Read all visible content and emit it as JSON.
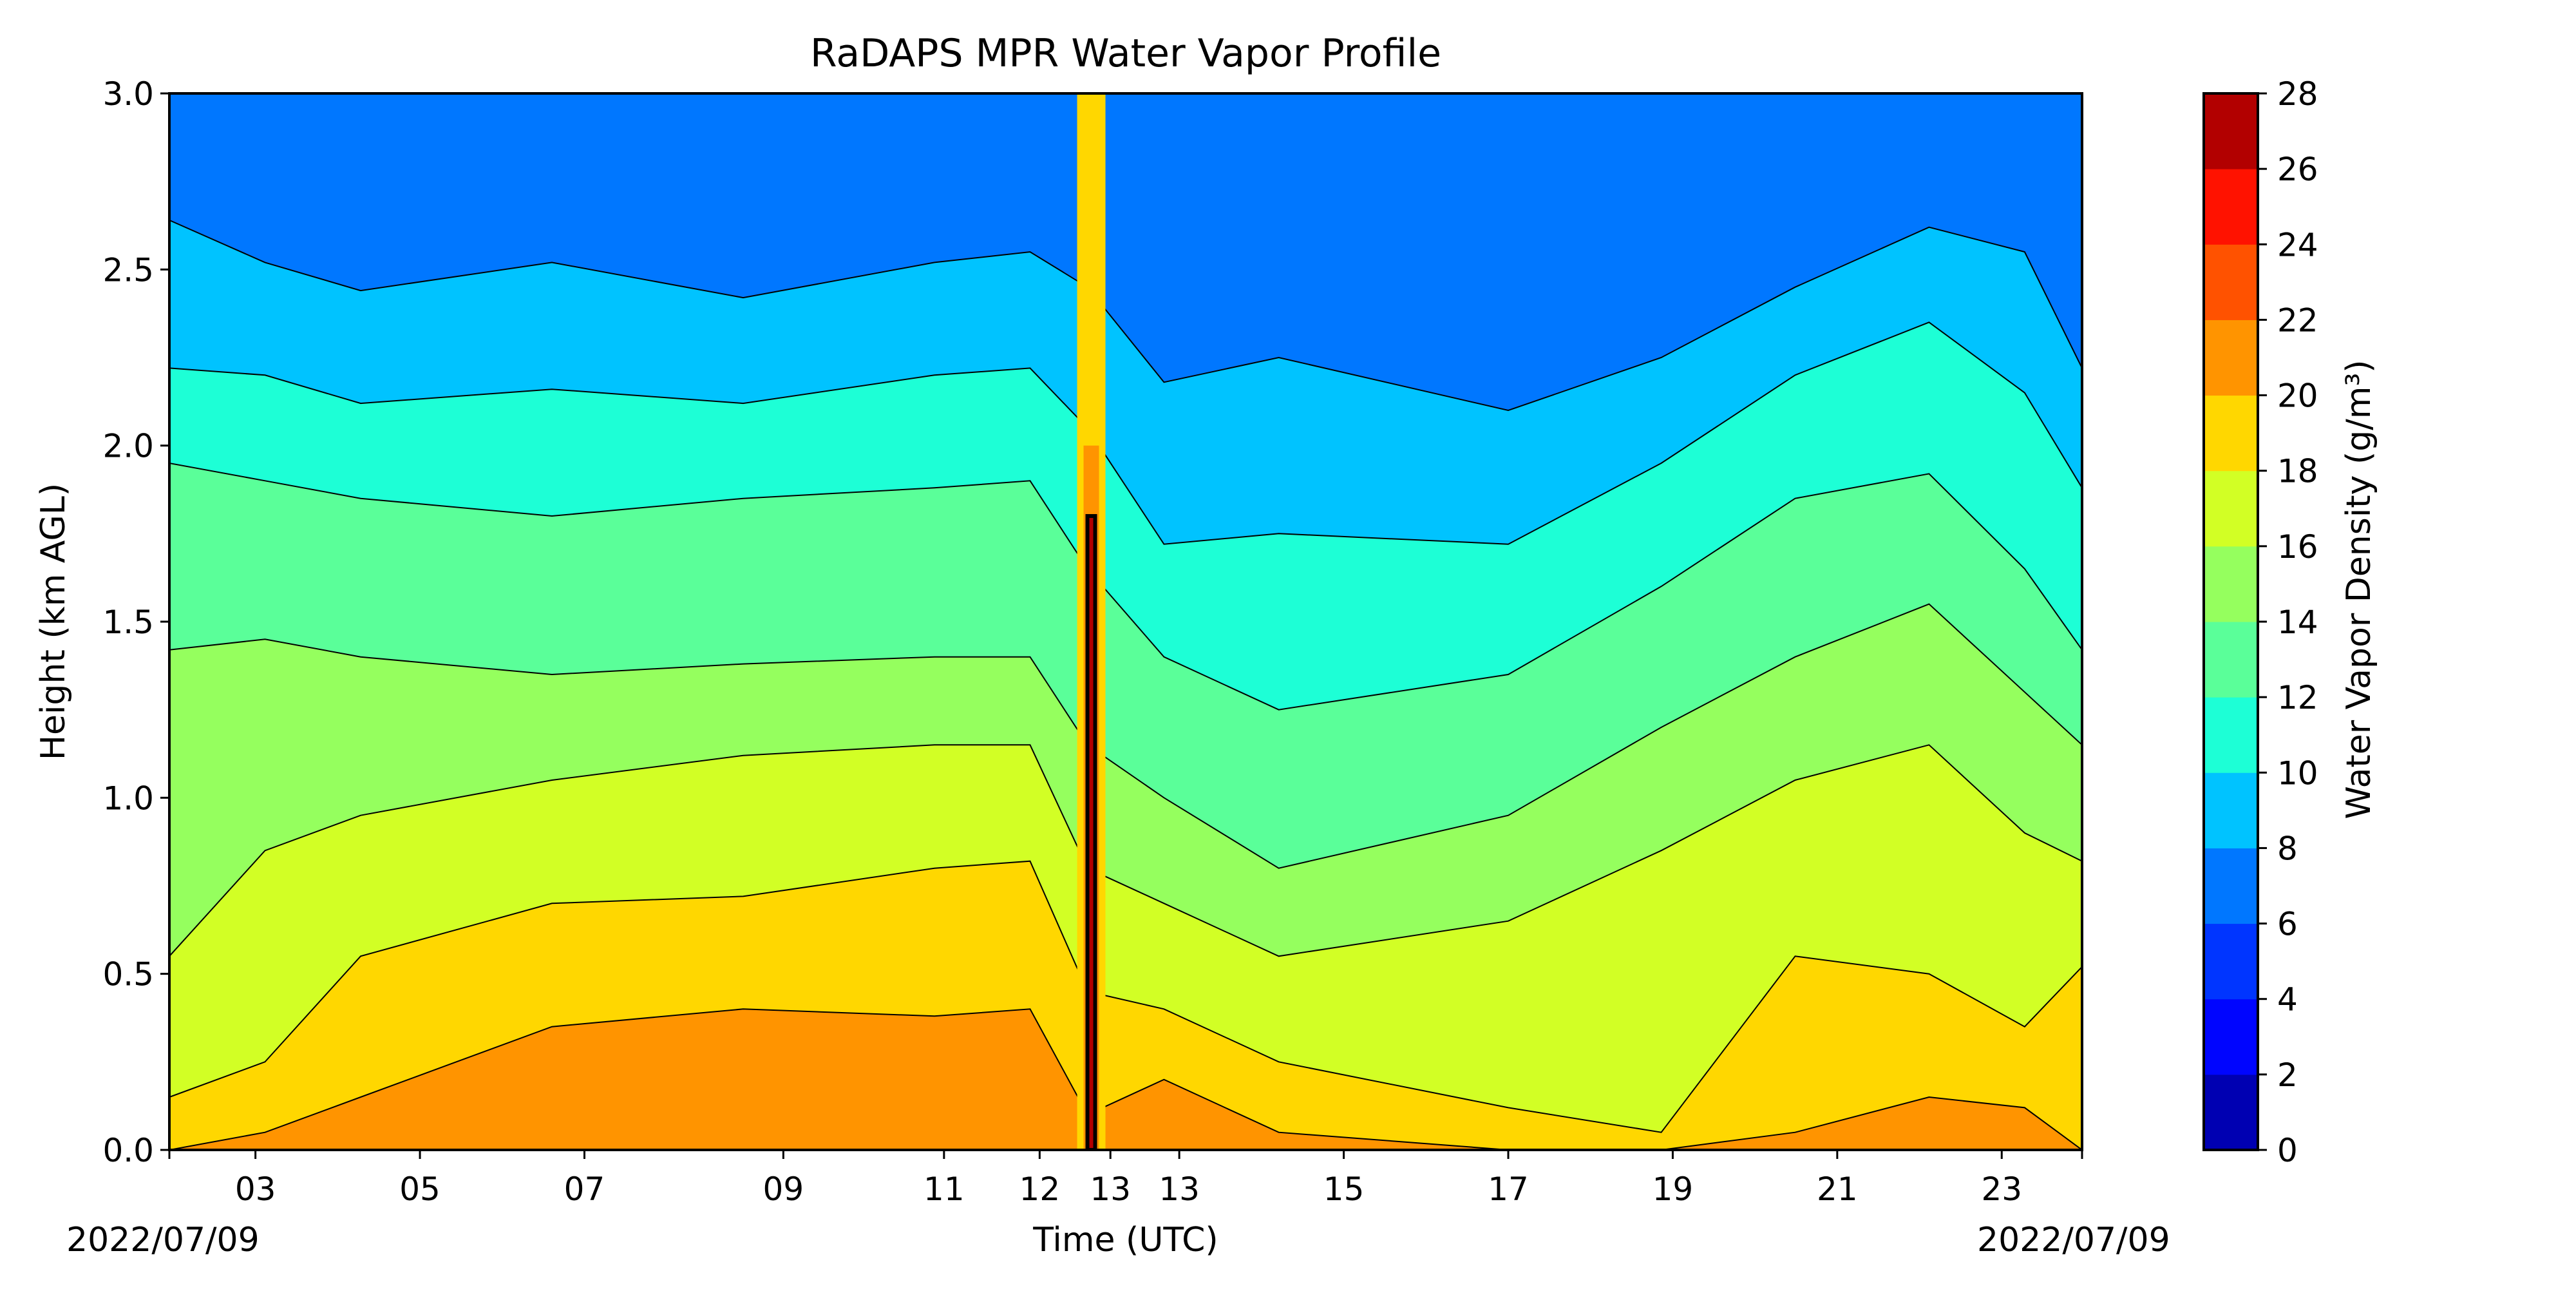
{
  "chart_data": {
    "type": "heatmap",
    "subtype": "filled-contour",
    "title": "RaDAPS MPR Water Vapor Profile",
    "xlabel": "Time (UTC)",
    "ylabel": "Height (km AGL)",
    "start_date_label": "2022/07/09",
    "end_date_label": "2022/07/09",
    "x_tick_labels": [
      "03",
      "05",
      "07",
      "09",
      "11",
      "12",
      "13",
      "13",
      "15",
      "17",
      "19",
      "21",
      "23"
    ],
    "y_ticks": [
      0.0,
      0.5,
      1.0,
      1.5,
      2.0,
      2.5,
      3.0
    ],
    "y_tick_labels": [
      "0.0",
      "0.5",
      "1.0",
      "1.5",
      "2.0",
      "2.5",
      "3.0"
    ],
    "ylim": [
      0.0,
      3.0
    ],
    "colorbar": {
      "label": "Water Vapor Density (g/m³)",
      "levels": [
        0,
        2,
        4,
        6,
        8,
        10,
        12,
        14,
        16,
        18,
        20,
        22,
        24,
        26,
        28
      ],
      "tick_labels": [
        "0",
        "2",
        "4",
        "6",
        "8",
        "10",
        "12",
        "14",
        "16",
        "18",
        "20",
        "22",
        "24",
        "26",
        "28"
      ],
      "colors": [
        "#0000b2",
        "#0005ff",
        "#0035ff",
        "#0077ff",
        "#00c3ff",
        "#1dffd6",
        "#5aff99",
        "#95ff5e",
        "#d2ff25",
        "#ffd700",
        "#ff9400",
        "#ff5200",
        "#ff1200",
        "#b20000"
      ]
    },
    "contour_boundaries_km": [
      {
        "level": 8,
        "points": [
          [
            0.0,
            2.64
          ],
          [
            0.05,
            2.52
          ],
          [
            0.1,
            2.44
          ],
          [
            0.2,
            2.52
          ],
          [
            0.3,
            2.42
          ],
          [
            0.4,
            2.52
          ],
          [
            0.45,
            2.55
          ],
          [
            0.48,
            2.45
          ],
          [
            0.52,
            2.18
          ],
          [
            0.58,
            2.25
          ],
          [
            0.7,
            2.1
          ],
          [
            0.78,
            2.25
          ],
          [
            0.85,
            2.45
          ],
          [
            0.92,
            2.62
          ],
          [
            0.97,
            2.55
          ],
          [
            1.0,
            2.22
          ]
        ]
      },
      {
        "level": 10,
        "points": [
          [
            0.0,
            2.22
          ],
          [
            0.05,
            2.2
          ],
          [
            0.1,
            2.12
          ],
          [
            0.2,
            2.16
          ],
          [
            0.3,
            2.12
          ],
          [
            0.4,
            2.2
          ],
          [
            0.45,
            2.22
          ],
          [
            0.48,
            2.05
          ],
          [
            0.52,
            1.72
          ],
          [
            0.58,
            1.75
          ],
          [
            0.7,
            1.72
          ],
          [
            0.78,
            1.95
          ],
          [
            0.85,
            2.2
          ],
          [
            0.92,
            2.35
          ],
          [
            0.97,
            2.15
          ],
          [
            1.0,
            1.88
          ]
        ]
      },
      {
        "level": 12,
        "points": [
          [
            0.0,
            1.95
          ],
          [
            0.05,
            1.9
          ],
          [
            0.1,
            1.85
          ],
          [
            0.2,
            1.8
          ],
          [
            0.3,
            1.85
          ],
          [
            0.4,
            1.88
          ],
          [
            0.45,
            1.9
          ],
          [
            0.48,
            1.65
          ],
          [
            0.52,
            1.4
          ],
          [
            0.58,
            1.25
          ],
          [
            0.7,
            1.35
          ],
          [
            0.78,
            1.6
          ],
          [
            0.85,
            1.85
          ],
          [
            0.92,
            1.92
          ],
          [
            0.97,
            1.65
          ],
          [
            1.0,
            1.42
          ]
        ]
      },
      {
        "level": 14,
        "points": [
          [
            0.0,
            1.42
          ],
          [
            0.05,
            1.45
          ],
          [
            0.1,
            1.4
          ],
          [
            0.2,
            1.35
          ],
          [
            0.3,
            1.38
          ],
          [
            0.4,
            1.4
          ],
          [
            0.45,
            1.4
          ],
          [
            0.48,
            1.15
          ],
          [
            0.52,
            1.0
          ],
          [
            0.58,
            0.8
          ],
          [
            0.7,
            0.95
          ],
          [
            0.78,
            1.2
          ],
          [
            0.85,
            1.4
          ],
          [
            0.92,
            1.55
          ],
          [
            0.97,
            1.3
          ],
          [
            1.0,
            1.15
          ]
        ]
      },
      {
        "level": 16,
        "points": [
          [
            0.0,
            0.55
          ],
          [
            0.05,
            0.85
          ],
          [
            0.1,
            0.95
          ],
          [
            0.2,
            1.05
          ],
          [
            0.3,
            1.12
          ],
          [
            0.4,
            1.15
          ],
          [
            0.45,
            1.15
          ],
          [
            0.48,
            0.8
          ],
          [
            0.52,
            0.7
          ],
          [
            0.58,
            0.55
          ],
          [
            0.7,
            0.65
          ],
          [
            0.78,
            0.85
          ],
          [
            0.85,
            1.05
          ],
          [
            0.92,
            1.15
          ],
          [
            0.97,
            0.9
          ],
          [
            1.0,
            0.82
          ]
        ]
      },
      {
        "level": 18,
        "points": [
          [
            0.0,
            0.15
          ],
          [
            0.05,
            0.25
          ],
          [
            0.1,
            0.55
          ],
          [
            0.2,
            0.7
          ],
          [
            0.3,
            0.72
          ],
          [
            0.4,
            0.8
          ],
          [
            0.45,
            0.82
          ],
          [
            0.48,
            0.45
          ],
          [
            0.52,
            0.4
          ],
          [
            0.58,
            0.25
          ],
          [
            0.7,
            0.12
          ],
          [
            0.78,
            0.05
          ],
          [
            0.85,
            0.55
          ],
          [
            0.92,
            0.5
          ],
          [
            0.97,
            0.35
          ],
          [
            1.0,
            0.52
          ]
        ]
      },
      {
        "level": 20,
        "points": [
          [
            0.0,
            0.0
          ],
          [
            0.05,
            0.05
          ],
          [
            0.1,
            0.15
          ],
          [
            0.2,
            0.35
          ],
          [
            0.3,
            0.4
          ],
          [
            0.4,
            0.38
          ],
          [
            0.45,
            0.4
          ],
          [
            0.48,
            0.1
          ],
          [
            0.52,
            0.2
          ],
          [
            0.58,
            0.05
          ],
          [
            0.7,
            0.0
          ],
          [
            0.78,
            0.0
          ],
          [
            0.85,
            0.05
          ],
          [
            0.92,
            0.15
          ],
          [
            0.97,
            0.12
          ],
          [
            1.0,
            0.0
          ]
        ]
      }
    ]
  }
}
